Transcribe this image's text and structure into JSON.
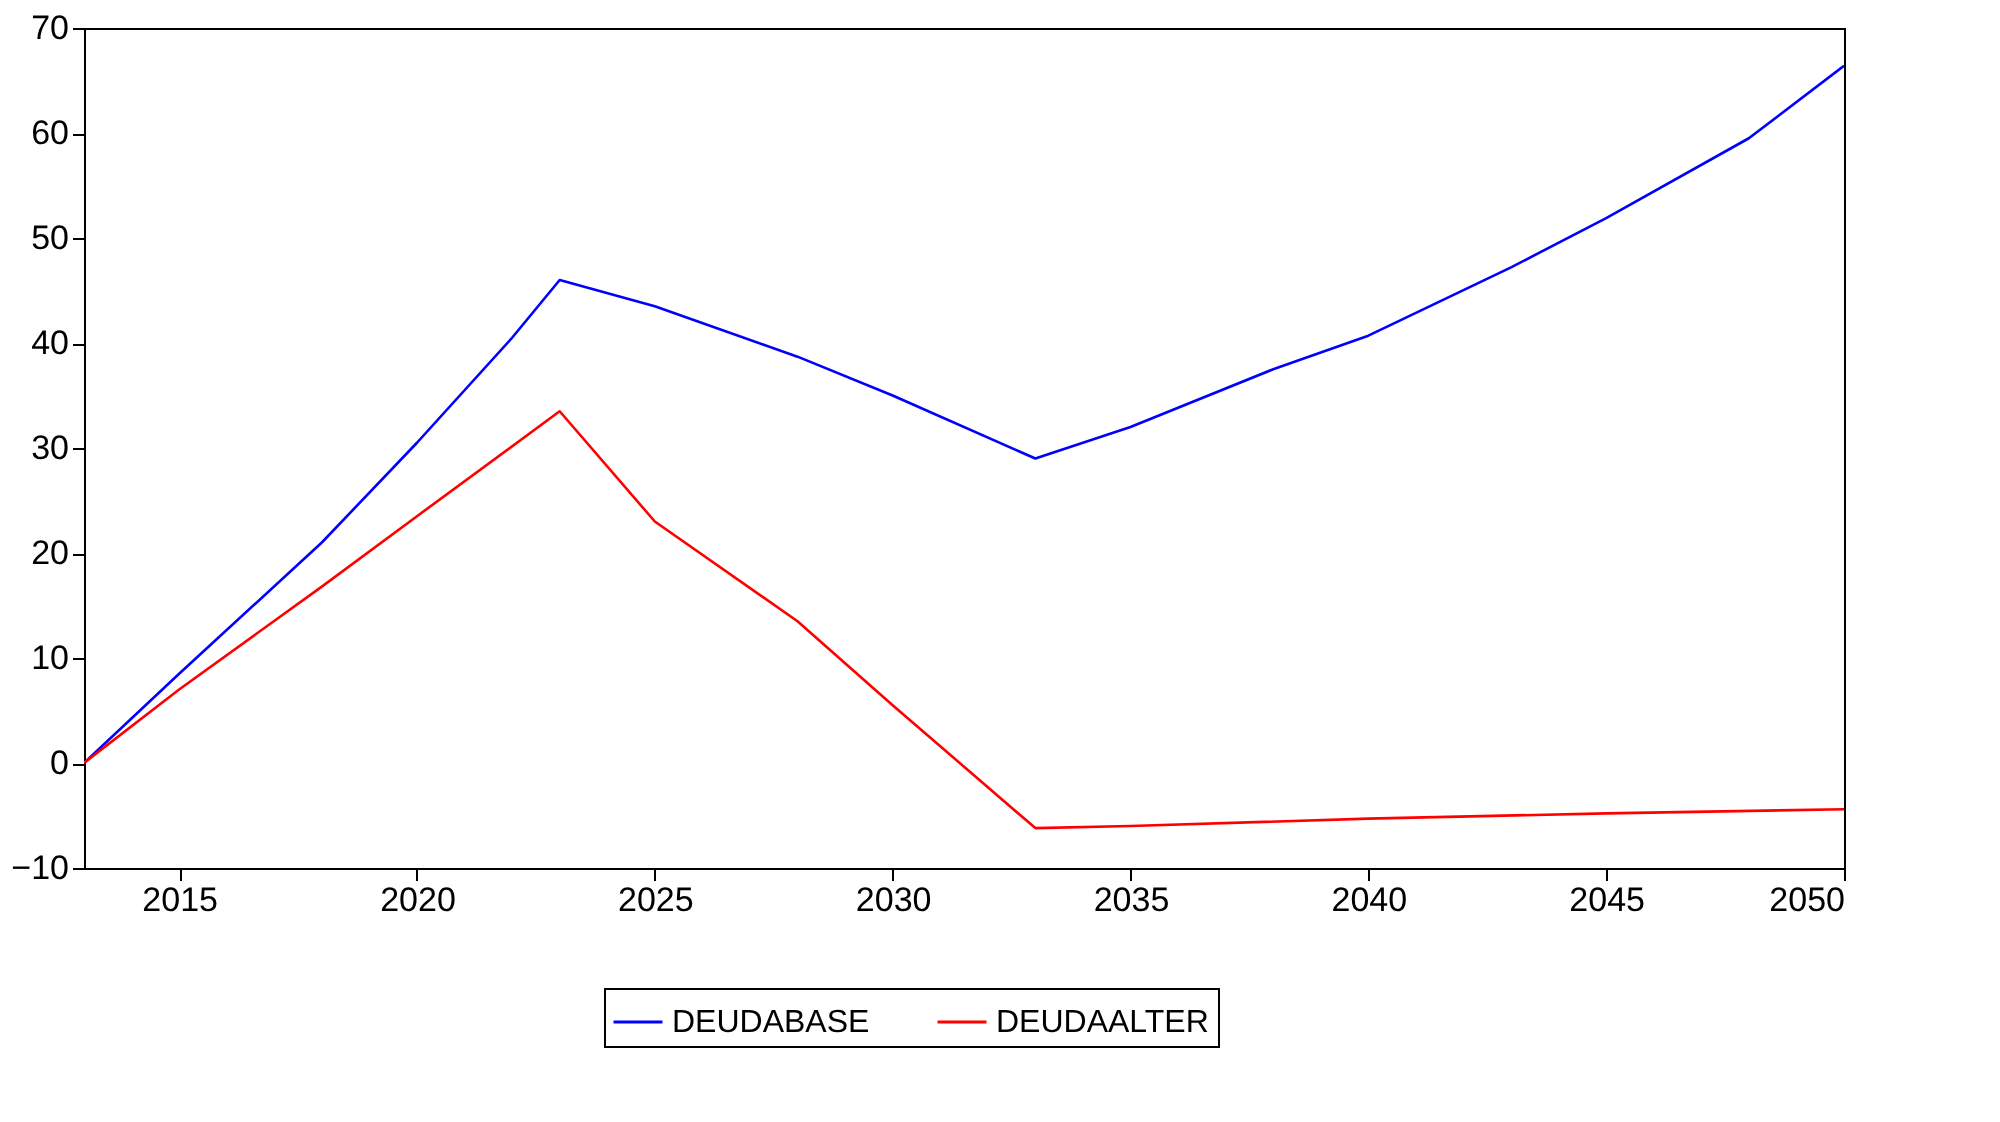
{
  "chart_data": {
    "type": "line",
    "xlim": [
      2013,
      2050
    ],
    "xticks": [
      2015,
      2020,
      2025,
      2030,
      2035,
      2040,
      2045,
      2050
    ],
    "ylim": [
      -10,
      70
    ],
    "yticks": [
      -10,
      0,
      10,
      20,
      30,
      40,
      50,
      60,
      70
    ],
    "grid": false,
    "legend": "bottom",
    "marker": "none",
    "line_style": "solid",
    "series": [
      {
        "name": "DEUDABASE",
        "color": "#0000ff",
        "x": [
          2013,
          2015,
          2018,
          2020,
          2022,
          2023,
          2025,
          2028,
          2030,
          2033,
          2035,
          2038,
          2040,
          2043,
          2045,
          2048,
          2050
        ],
        "values": [
          0,
          8.5,
          21,
          30.5,
          40.5,
          46,
          43.5,
          38.7,
          35,
          29,
          32,
          37.5,
          40.7,
          47.2,
          51.9,
          59.5,
          66.4
        ]
      },
      {
        "name": "DEUDAALTER",
        "color": "#ff0000",
        "x": [
          2013,
          2015,
          2018,
          2020,
          2023,
          2025,
          2028,
          2030,
          2033,
          2035,
          2040,
          2045,
          2050
        ],
        "values": [
          0,
          7,
          16.8,
          23.5,
          33.5,
          23,
          13.5,
          5.5,
          -6.2,
          -6,
          -5.3,
          -4.8,
          -4.4
        ]
      }
    ]
  }
}
